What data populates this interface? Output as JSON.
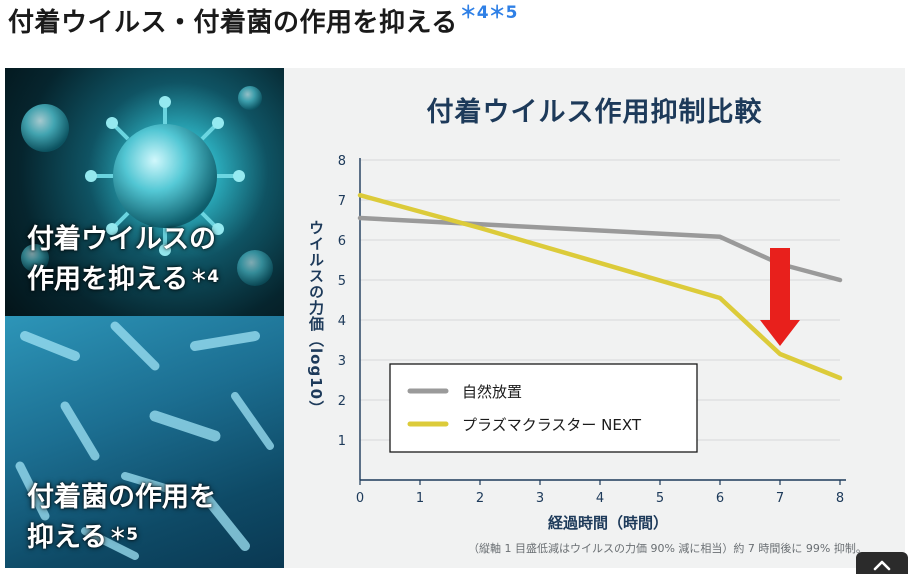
{
  "heading": {
    "text": "付着ウイルス・付着菌の作用を抑える",
    "note": "＊4＊5"
  },
  "left_panel": {
    "virus_caption_line1": "付着ウイルスの",
    "virus_caption_line2": "作用を抑える",
    "virus_caption_note": "＊4",
    "bact_caption_line1": "付着菌の作用を",
    "bact_caption_line2": "抑える",
    "bact_caption_note": "＊5"
  },
  "chart_data": {
    "type": "line",
    "title": "付着ウイルス作用抑制比較",
    "xlabel": "経過時間（時間）",
    "ylabel": "ウイルスの力価（log10）",
    "x": [
      0,
      1,
      2,
      3,
      4,
      5,
      6,
      7,
      8
    ],
    "xticks": [
      "0",
      "1",
      "2",
      "3",
      "4",
      "5",
      "6",
      "7",
      "8"
    ],
    "yticks": [
      "1",
      "2",
      "3",
      "4",
      "5",
      "6",
      "7",
      "8"
    ],
    "xlim": [
      0,
      8
    ],
    "ylim": [
      0,
      8
    ],
    "grid": true,
    "legend_position": "bottom-left",
    "series": [
      {
        "name": "自然放置",
        "color": "#9a9a9a",
        "points": [
          [
            0,
            6.55
          ],
          [
            6,
            6.08
          ],
          [
            7,
            5.4
          ],
          [
            8,
            5.0
          ]
        ]
      },
      {
        "name": "プラズマクラスター NEXT",
        "color": "#dccb3a",
        "points": [
          [
            0,
            7.12
          ],
          [
            2,
            6.3
          ],
          [
            6,
            4.55
          ],
          [
            7,
            3.15
          ],
          [
            8,
            2.55
          ]
        ]
      }
    ],
    "annotation": {
      "type": "arrow",
      "x": 7,
      "from": 5.4,
      "to": 3.15,
      "color": "#e8201c"
    },
    "footnote": "（縦軸 1 目盛低減はウイルスの力価 90% 減に相当）約 7 時間後に 99% 抑制。"
  },
  "colors": {
    "axis": "#1d3a5a",
    "grid": "#d6d8da",
    "arrow": "#e8201c",
    "heading_note": "#2f80e6"
  },
  "icons": {
    "scroll_top": "chevron-up-icon"
  }
}
